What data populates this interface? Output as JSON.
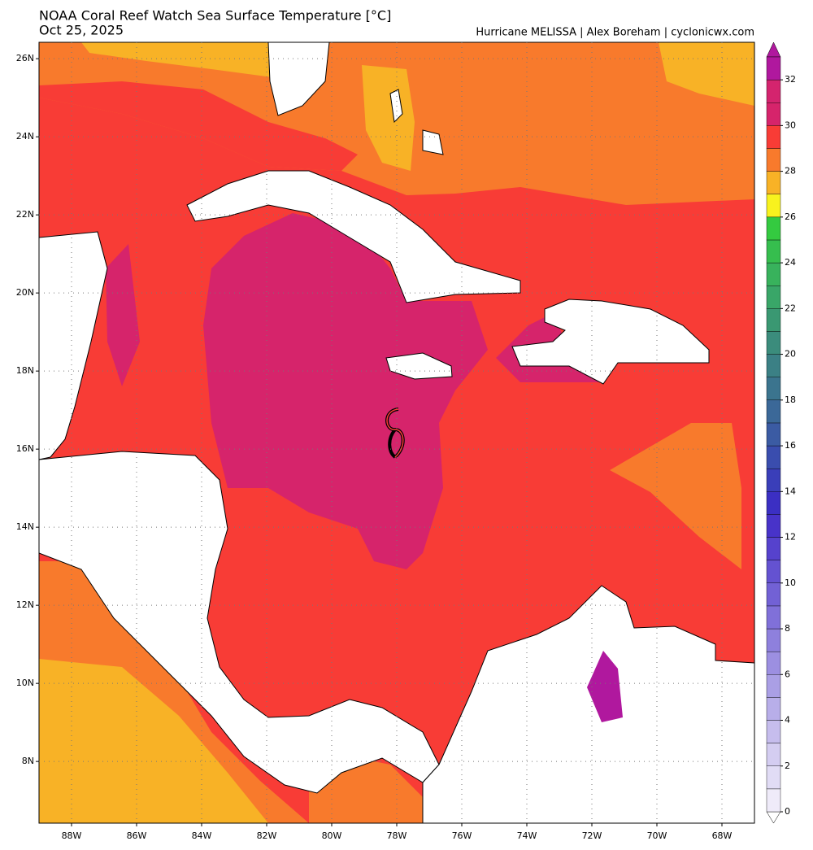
{
  "title": "NOAA Coral Reef Watch Sea Surface Temperature [°C]",
  "date": "Oct 25, 2025",
  "credit": "Hurricane MELISSA | Alex Boreham | cyclonicwx.com",
  "map": {
    "xlim": [
      -89,
      -67
    ],
    "ylim": [
      6.42,
      26.42
    ],
    "lat_ticks": [
      {
        "value": 26,
        "label": "26N"
      },
      {
        "value": 24,
        "label": "24N"
      },
      {
        "value": 22,
        "label": "22N"
      },
      {
        "value": 20,
        "label": "20N"
      },
      {
        "value": 18,
        "label": "18N"
      },
      {
        "value": 16,
        "label": "16N"
      },
      {
        "value": 14,
        "label": "14N"
      },
      {
        "value": 12,
        "label": "12N"
      },
      {
        "value": 10,
        "label": "10N"
      },
      {
        "value": 8,
        "label": "8N"
      }
    ],
    "lon_ticks": [
      {
        "value": -88,
        "label": "88W"
      },
      {
        "value": -86,
        "label": "86W"
      },
      {
        "value": -84,
        "label": "84W"
      },
      {
        "value": -82,
        "label": "82W"
      },
      {
        "value": -80,
        "label": "80W"
      },
      {
        "value": -78,
        "label": "78W"
      },
      {
        "value": -76,
        "label": "76W"
      },
      {
        "value": -74,
        "label": "74W"
      },
      {
        "value": -72,
        "label": "72W"
      },
      {
        "value": -70,
        "label": "70W"
      },
      {
        "value": -68,
        "label": "68W"
      }
    ],
    "grid": true
  },
  "colorbar": {
    "lim": [
      0,
      33
    ],
    "ticks": [
      0,
      2,
      4,
      6,
      8,
      10,
      12,
      14,
      16,
      18,
      20,
      22,
      24,
      26,
      28,
      30,
      32
    ],
    "colors": [
      "#efebf9",
      "#e1dcf5",
      "#d4cdf1",
      "#c6bded",
      "#b8aee9",
      "#aa9fe5",
      "#9c8fe1",
      "#8e80dd",
      "#8070d9",
      "#7261d5",
      "#6452d1",
      "#5642cd",
      "#4833c9",
      "#3b2fc3",
      "#3a3eb9",
      "#3a4dae",
      "#3b5ba3",
      "#3b6898",
      "#3b748e",
      "#3b8085",
      "#3b8c7c",
      "#3a9872",
      "#39a668",
      "#38b25c",
      "#36be4e",
      "#34ca40",
      "#f8f21e",
      "#f8b226",
      "#f87a2c",
      "#f83c36",
      "#d6246b",
      "#d4246e",
      "#b0189e"
    ]
  }
}
